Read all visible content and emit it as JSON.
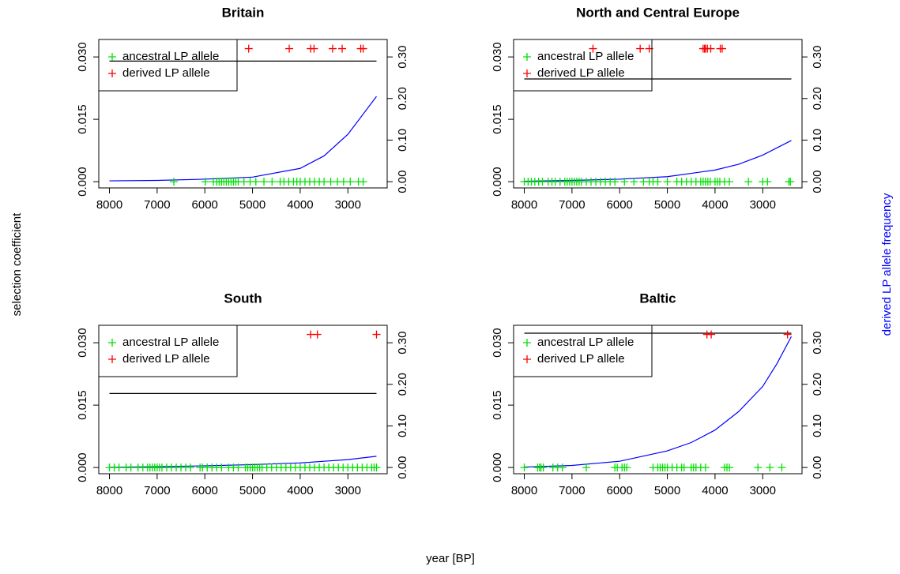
{
  "labels": {
    "y_label": "selection coefficient",
    "y2_label": "derived LP allele frequency",
    "x_label": "year [BP]"
  },
  "chart_data": [
    {
      "type": "line",
      "title": "Britain",
      "legend": "top-left",
      "xlim": [
        8224,
        2176
      ],
      "xticks": [
        8000,
        7000,
        6000,
        5000,
        4000,
        3000
      ],
      "ylim": [
        -0.0015,
        0.0342
      ],
      "yticks": [
        {
          "value": 0,
          "label": "0.000"
        },
        {
          "value": 0.015,
          "label": "0.015"
        },
        {
          "value": 0.03,
          "label": "0.030"
        }
      ],
      "y2lim": [
        -0.015,
        0.342
      ],
      "y2ticks": [
        {
          "value": 0,
          "label": "0.00"
        },
        {
          "value": 0.1,
          "label": "0.10"
        },
        {
          "value": 0.2,
          "label": "0.20"
        },
        {
          "value": 0.3,
          "label": "0.30"
        }
      ],
      "selection_line": {
        "color": "#000000",
        "x": [
          8000,
          2400
        ],
        "values": [
          0.029,
          0.029
        ]
      },
      "frequency_curve": {
        "color": "#0000ff",
        "axis": "y2",
        "x": [
          8000,
          7000,
          6000,
          5000,
          4000,
          3500,
          3000,
          2400
        ],
        "values": [
          0.002,
          0.003,
          0.006,
          0.011,
          0.032,
          0.062,
          0.114,
          0.205
        ]
      },
      "series": [
        {
          "name": "ancestral LP allele",
          "color": "#00e000",
          "axis": "y2",
          "x": [
            6650,
            5990,
            5820,
            5750,
            5700,
            5650,
            5600,
            5550,
            5500,
            5450,
            5400,
            5350,
            5300,
            5180,
            5050,
            4930,
            4760,
            4590,
            4420,
            4340,
            4240,
            4140,
            4070,
            4000,
            3900,
            3800,
            3700,
            3600,
            3500,
            3360,
            3220,
            3090,
            2950,
            2780,
            2680
          ],
          "values": [
            0,
            0,
            0,
            0,
            0,
            0,
            0,
            0,
            0,
            0,
            0,
            0,
            0,
            0,
            0,
            0,
            0,
            0,
            0,
            0,
            0,
            0,
            0,
            0,
            0,
            0,
            0,
            0,
            0,
            0,
            0,
            0,
            0,
            0,
            0
          ]
        },
        {
          "name": "derived LP allele",
          "color": "#ff0000",
          "axis": "y2",
          "x": [
            5080,
            4230,
            3780,
            3710,
            3320,
            3120,
            2730,
            2680
          ],
          "values": [
            0.32,
            0.32,
            0.32,
            0.32,
            0.32,
            0.32,
            0.32,
            0.32
          ]
        }
      ]
    },
    {
      "type": "line",
      "title": "North and Central Europe",
      "legend": "top-left",
      "xlim": [
        8224,
        2176
      ],
      "xticks": [
        8000,
        7000,
        6000,
        5000,
        4000,
        3000
      ],
      "ylim": [
        -0.0015,
        0.0342
      ],
      "yticks": [
        {
          "value": 0,
          "label": "0.000"
        },
        {
          "value": 0.015,
          "label": "0.015"
        },
        {
          "value": 0.03,
          "label": "0.030"
        }
      ],
      "y2lim": [
        -0.015,
        0.342
      ],
      "y2ticks": [
        {
          "value": 0,
          "label": "0.00"
        },
        {
          "value": 0.1,
          "label": "0.10"
        },
        {
          "value": 0.2,
          "label": "0.20"
        },
        {
          "value": 0.3,
          "label": "0.30"
        }
      ],
      "selection_line": {
        "color": "#000000",
        "x": [
          8000,
          2400
        ],
        "values": [
          0.0247,
          0.0247
        ]
      },
      "frequency_curve": {
        "color": "#0000ff",
        "axis": "y2",
        "x": [
          8000,
          7000,
          6000,
          5000,
          4000,
          3500,
          3000,
          2400
        ],
        "values": [
          0.001,
          0.003,
          0.006,
          0.012,
          0.028,
          0.042,
          0.064,
          0.099
        ]
      },
      "series": [
        {
          "name": "ancestral LP allele",
          "color": "#00e000",
          "axis": "y2",
          "x": [
            8000,
            7920,
            7850,
            7780,
            7700,
            7620,
            7500,
            7420,
            7350,
            7250,
            7150,
            7100,
            7050,
            7000,
            6950,
            6900,
            6850,
            6800,
            6700,
            6600,
            6500,
            6400,
            6300,
            6200,
            6100,
            5900,
            5700,
            5500,
            5380,
            5300,
            5200,
            5000,
            4800,
            4700,
            4600,
            4500,
            4400,
            4300,
            4250,
            4200,
            4150,
            4100,
            4000,
            3950,
            3900,
            3800,
            3700,
            3300,
            3000,
            2900,
            2450,
            2420
          ],
          "values": [
            0,
            0,
            0,
            0,
            0,
            0,
            0,
            0,
            0,
            0,
            0,
            0,
            0,
            0,
            0,
            0,
            0,
            0,
            0,
            0,
            0,
            0,
            0,
            0,
            0,
            0,
            0,
            0,
            0,
            0,
            0,
            0,
            0,
            0,
            0,
            0,
            0,
            0,
            0,
            0,
            0,
            0,
            0,
            0,
            0,
            0,
            0,
            0,
            0,
            0,
            0,
            0
          ]
        },
        {
          "name": "derived LP allele",
          "color": "#ff0000",
          "axis": "y2",
          "x": [
            6560,
            5570,
            5380,
            4250,
            4220,
            4200,
            4160,
            4090,
            3890,
            3850
          ],
          "values": [
            0.32,
            0.32,
            0.32,
            0.32,
            0.32,
            0.32,
            0.32,
            0.32,
            0.32,
            0.32
          ]
        }
      ]
    },
    {
      "type": "line",
      "title": "South",
      "legend": "top-left",
      "xlim": [
        8224,
        2176
      ],
      "xticks": [
        8000,
        7000,
        6000,
        5000,
        4000,
        3000
      ],
      "ylim": [
        -0.0015,
        0.0342
      ],
      "yticks": [
        {
          "value": 0,
          "label": "0.000"
        },
        {
          "value": 0.015,
          "label": "0.015"
        },
        {
          "value": 0.03,
          "label": "0.030"
        }
      ],
      "y2lim": [
        -0.015,
        0.342
      ],
      "y2ticks": [
        {
          "value": 0,
          "label": "0.00"
        },
        {
          "value": 0.1,
          "label": "0.10"
        },
        {
          "value": 0.2,
          "label": "0.20"
        },
        {
          "value": 0.3,
          "label": "0.30"
        }
      ],
      "selection_line": {
        "color": "#000000",
        "x": [
          8000,
          2400
        ],
        "values": [
          0.0178,
          0.0178
        ]
      },
      "frequency_curve": {
        "color": "#0000ff",
        "axis": "y2",
        "x": [
          8000,
          7000,
          6000,
          5000,
          4000,
          3500,
          3000,
          2400
        ],
        "values": [
          0.0005,
          0.002,
          0.004,
          0.007,
          0.011,
          0.015,
          0.019,
          0.027
        ]
      },
      "series": [
        {
          "name": "ancestral LP allele",
          "color": "#00e000",
          "axis": "y2",
          "x": [
            8000,
            7900,
            7800,
            7650,
            7550,
            7400,
            7300,
            7200,
            7150,
            7100,
            7050,
            7000,
            6950,
            6900,
            6800,
            6700,
            6600,
            6500,
            6400,
            6300,
            6100,
            6050,
            5950,
            5850,
            5750,
            5650,
            5500,
            5400,
            5300,
            5150,
            5100,
            5050,
            5000,
            4950,
            4900,
            4850,
            4800,
            4700,
            4600,
            4500,
            4400,
            4300,
            4200,
            4100,
            4000,
            3900,
            3800,
            3700,
            3600,
            3500,
            3400,
            3300,
            3200,
            3100,
            3000,
            2900,
            2800,
            2700,
            2600,
            2500,
            2450,
            2400
          ],
          "values": [
            0,
            0,
            0,
            0,
            0,
            0,
            0,
            0,
            0,
            0,
            0,
            0,
            0,
            0,
            0,
            0,
            0,
            0,
            0,
            0,
            0,
            0,
            0,
            0,
            0,
            0,
            0,
            0,
            0,
            0,
            0,
            0,
            0,
            0,
            0,
            0,
            0,
            0,
            0,
            0,
            0,
            0,
            0,
            0,
            0,
            0,
            0,
            0,
            0,
            0,
            0,
            0,
            0,
            0,
            0,
            0,
            0,
            0,
            0,
            0,
            0,
            0
          ]
        },
        {
          "name": "derived LP allele",
          "color": "#ff0000",
          "axis": "y2",
          "x": [
            3780,
            3640,
            2400
          ],
          "values": [
            0.32,
            0.32,
            0.32
          ]
        }
      ]
    },
    {
      "type": "line",
      "title": "Baltic",
      "legend": "top-left",
      "xlim": [
        8224,
        2176
      ],
      "xticks": [
        8000,
        7000,
        6000,
        5000,
        4000,
        3000
      ],
      "ylim": [
        -0.0015,
        0.0342
      ],
      "yticks": [
        {
          "value": 0,
          "label": "0.000"
        },
        {
          "value": 0.015,
          "label": "0.015"
        },
        {
          "value": 0.03,
          "label": "0.030"
        }
      ],
      "y2lim": [
        -0.015,
        0.342
      ],
      "y2ticks": [
        {
          "value": 0,
          "label": "0.00"
        },
        {
          "value": 0.1,
          "label": "0.10"
        },
        {
          "value": 0.2,
          "label": "0.20"
        },
        {
          "value": 0.3,
          "label": "0.30"
        }
      ],
      "selection_line": {
        "color": "#000000",
        "x": [
          8000,
          2400
        ],
        "values": [
          0.0323,
          0.0323
        ]
      },
      "frequency_curve": {
        "color": "#0000ff",
        "axis": "y2",
        "x": [
          8000,
          7000,
          6000,
          5000,
          4500,
          4000,
          3500,
          3000,
          2700,
          2400
        ],
        "values": [
          0.001,
          0.005,
          0.015,
          0.04,
          0.06,
          0.09,
          0.135,
          0.195,
          0.25,
          0.315
        ]
      },
      "series": [
        {
          "name": "ancestral LP allele",
          "color": "#00e000",
          "axis": "y2",
          "x": [
            8000,
            7720,
            7680,
            7650,
            7600,
            7400,
            7300,
            7200,
            6700,
            6100,
            6050,
            5950,
            5900,
            5850,
            5300,
            5200,
            5150,
            5100,
            5050,
            5000,
            4900,
            4800,
            4700,
            4650,
            4500,
            4450,
            4400,
            4300,
            4200,
            3800,
            3750,
            3700,
            3100,
            2850,
            2600
          ],
          "values": [
            0,
            0,
            0,
            0,
            0,
            0,
            0,
            0,
            0,
            0,
            0,
            0,
            0,
            0,
            0,
            0,
            0,
            0,
            0,
            0,
            0,
            0,
            0,
            0,
            0,
            0,
            0,
            0,
            0,
            0,
            0,
            0,
            0,
            0,
            0
          ]
        },
        {
          "name": "derived LP allele",
          "color": "#ff0000",
          "axis": "y2",
          "x": [
            4170,
            4080,
            2480
          ],
          "values": [
            0.32,
            0.32,
            0.32
          ]
        }
      ]
    }
  ]
}
